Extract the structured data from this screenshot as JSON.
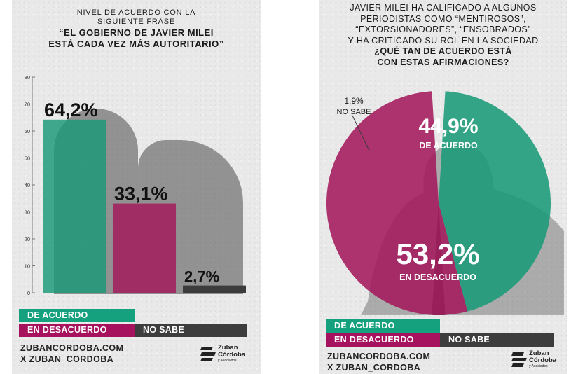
{
  "colors": {
    "acuerdo": "#1a9a78",
    "desacuerdo": "#a3195c",
    "no_sabe": "#3c3c3c",
    "acuerdo_legend": "#15a17e",
    "desacuerdo_legend": "#a6125e",
    "no_sabe_legend": "#3d3d3d"
  },
  "left": {
    "title_lines": [
      "NIVEL DE ACUERDO CON LA",
      "SIGUIENTE FRASE",
      "“EL GOBIERNO DE JAVIER MILEI",
      "ESTÁ CADA VEZ MÁS AUTORITARIO”"
    ],
    "legend": [
      "DE ACUERDO",
      "EN DESACUERDO",
      "NO SABE"
    ],
    "footer": [
      "ZUBANCORDOBA.COM",
      "X ZUBAN_CORDOBA"
    ],
    "logo": {
      "line1": "Zuban",
      "line2": "Córdoba",
      "line3": "y Asociados"
    }
  },
  "right": {
    "title_lines": [
      "JAVIER MILEI HA CALIFICADO A ALGUNOS",
      "PERIODISTAS COMO “MENTIROSOS”,",
      "“EXTORSIONADORES”, “ENSOBRADOS”",
      "Y HA CRITICADO SU ROL EN LA SOCIEDAD",
      "¿QUÉ TAN DE ACUERDO ESTÁ",
      "CON ESTAS AFIRMACIONES?"
    ],
    "legend": [
      "DE ACUERDO",
      "EN DESACUERDO",
      "NO SABE"
    ],
    "footer": [
      "ZUBANCORDOBA.COM",
      "X ZUBAN_CORDOBA"
    ],
    "logo": {
      "line1": "Zuban",
      "line2": "Córdoba",
      "line3": "y Asociados"
    }
  },
  "chart_data": [
    {
      "type": "bar",
      "categories": [
        "DE ACUERDO",
        "EN DESACUERDO",
        "NO SABE"
      ],
      "values": [
        64.2,
        33.1,
        2.7
      ],
      "value_labels": [
        "64,2%",
        "33,1%",
        "2,7%"
      ],
      "y_ticks": [
        "0",
        "10",
        "20",
        "30",
        "40",
        "50",
        "60",
        "70",
        "80"
      ],
      "ylim": [
        0,
        80
      ]
    },
    {
      "type": "pie",
      "categories": [
        "DE ACUERDO",
        "EN DESACUERDO",
        "NO SABE"
      ],
      "values": [
        44.9,
        53.2,
        1.9
      ],
      "value_labels": [
        "44,9%",
        "53,2%",
        "1,9%"
      ]
    }
  ]
}
